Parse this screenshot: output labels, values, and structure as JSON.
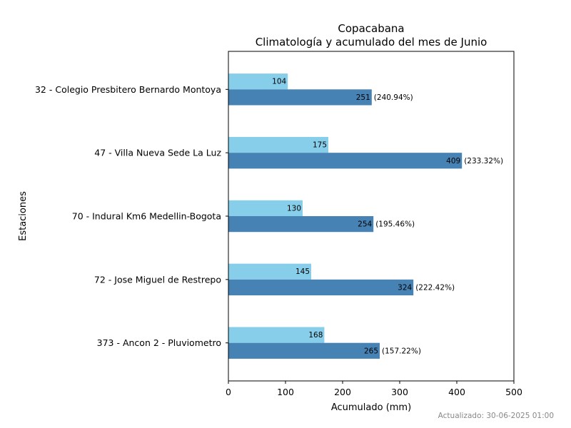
{
  "chart_data": {
    "type": "bar",
    "orientation": "horizontal",
    "title": "Copacabana",
    "subtitle": "Climatología y acumulado del mes de Junio",
    "xlabel": "Acumulado (mm)",
    "ylabel": "Estaciones",
    "xlim": [
      0,
      500
    ],
    "xticks": [
      0,
      100,
      200,
      300,
      400,
      500
    ],
    "grid": false,
    "categories": [
      "32 - Colegio Presbitero Bernardo Montoya",
      "47 - Villa Nueva Sede La Luz",
      "70 - Indural Km6 Medellin-Bogota",
      "72 - Jose Miguel de Restrepo",
      "373 - Ancon 2 - Pluviometro"
    ],
    "series": [
      {
        "color": "#87ceeb",
        "values": [
          104,
          175,
          130,
          145,
          168
        ],
        "labels": [
          "104",
          "175",
          "130",
          "145",
          "168"
        ]
      },
      {
        "color": "#4682b4",
        "values": [
          251,
          409,
          254,
          324,
          265
        ],
        "labels": [
          "251",
          "409",
          "254",
          "324",
          "265"
        ],
        "percent_labels": [
          "(240.94%)",
          "(233.32%)",
          "(195.46%)",
          "(222.42%)",
          "(157.22%)"
        ]
      }
    ]
  },
  "footer": {
    "updated": "Actualizado: 30-06-2025 01:00"
  }
}
